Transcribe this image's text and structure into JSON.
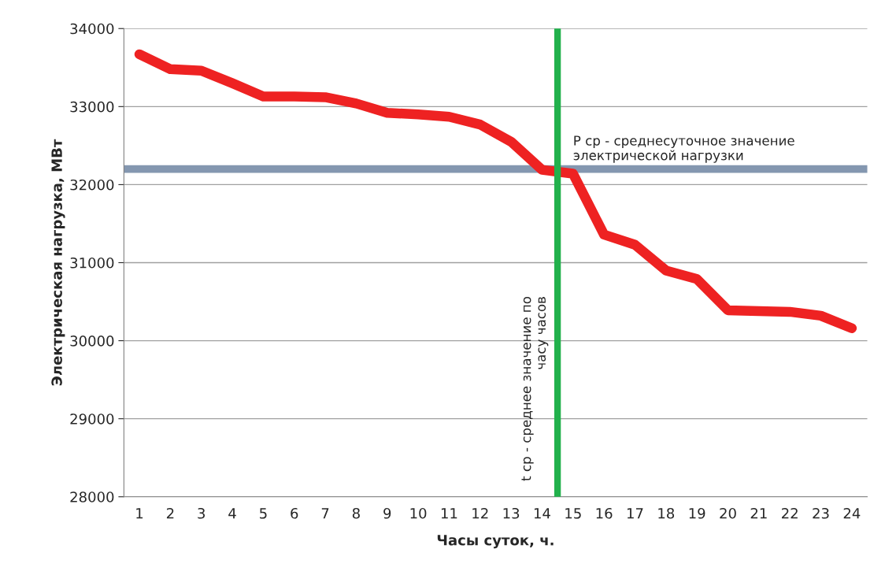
{
  "chart_data": {
    "type": "line",
    "xlabel": "Часы суток, ч.",
    "ylabel": "Электрическая нагрузка, МВт",
    "x": [
      1,
      2,
      3,
      4,
      5,
      6,
      7,
      8,
      9,
      10,
      11,
      12,
      13,
      14,
      15,
      16,
      17,
      18,
      19,
      20,
      21,
      22,
      23,
      24
    ],
    "series": [
      {
        "color": "#ee2222",
        "values": [
          33670,
          33480,
          33460,
          33300,
          33130,
          33130,
          33120,
          33040,
          32920,
          32900,
          32870,
          32770,
          32550,
          32190,
          32140,
          31360,
          31230,
          30900,
          30790,
          30390,
          30380,
          30370,
          30320,
          30160
        ]
      }
    ],
    "xlim": [
      0.5,
      24.5
    ],
    "xticks": [
      1,
      2,
      3,
      4,
      5,
      6,
      7,
      8,
      9,
      10,
      11,
      12,
      13,
      14,
      15,
      16,
      17,
      18,
      19,
      20,
      21,
      22,
      23,
      24
    ],
    "ylim": [
      28000,
      34000
    ],
    "yticks": [
      28000,
      29000,
      30000,
      31000,
      32000,
      33000,
      34000
    ],
    "grid": "y",
    "marker": "none",
    "line_style": "solid",
    "ref_lines": [
      {
        "axis": "y",
        "value": 32200,
        "label": "P ср - среднесуточное значение\nэлектрической нагрузки",
        "color": "#8497b0",
        "line_style": "solid"
      },
      {
        "axis": "x",
        "value": 14.5,
        "label": "t ср - среднее значение по\nчасу часов",
        "color": "#22b14c",
        "line_style": "solid"
      }
    ]
  }
}
